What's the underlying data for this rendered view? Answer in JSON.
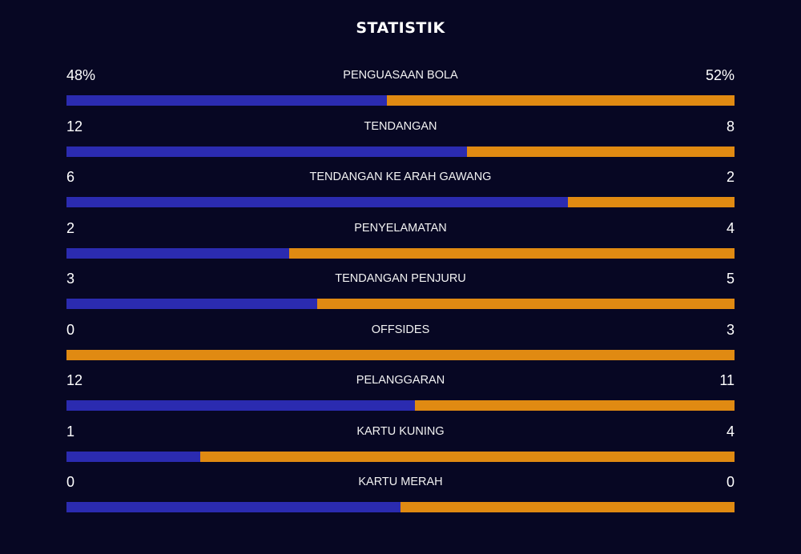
{
  "title": "STATISTIK",
  "colors": {
    "background": "#070723",
    "home": "#2b2bb0",
    "away": "#e08a12"
  },
  "stats": [
    {
      "label": "PENGUASAAN BOLA",
      "home": "48%",
      "away": "52%",
      "home_share": 0.48
    },
    {
      "label": "TENDANGAN",
      "home": "12",
      "away": "8",
      "home_share": 0.6
    },
    {
      "label": "TENDANGAN KE ARAH GAWANG",
      "home": "6",
      "away": "2",
      "home_share": 0.75
    },
    {
      "label": "PENYELAMATAN",
      "home": "2",
      "away": "4",
      "home_share": 0.3333
    },
    {
      "label": "TENDANGAN PENJURU",
      "home": "3",
      "away": "5",
      "home_share": 0.375
    },
    {
      "label": "OFFSIDES",
      "home": "0",
      "away": "3",
      "home_share": 0
    },
    {
      "label": "PELANGGARAN",
      "home": "12",
      "away": "11",
      "home_share": 0.5217
    },
    {
      "label": "KARTU KUNING",
      "home": "1",
      "away": "4",
      "home_share": 0.2
    },
    {
      "label": "KARTU MERAH",
      "home": "0",
      "away": "0",
      "home_share": 0.5
    }
  ]
}
